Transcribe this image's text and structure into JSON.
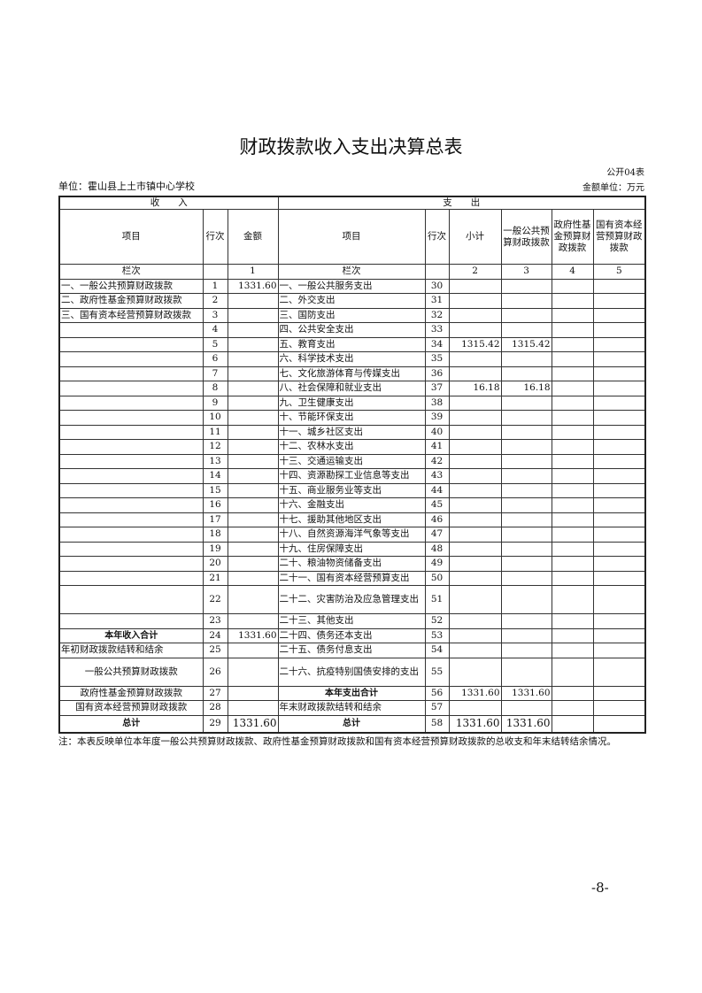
{
  "title": "财政拨款收入支出决算总表",
  "form_no": "公开04表",
  "unit": "单位：霍山县上土市镇中心学校",
  "money_unit": "金额单位：万元",
  "header": {
    "income": "收　　入",
    "expense": "支　　出",
    "item": "项目",
    "row_no": "行次",
    "amount": "金额",
    "subtotal": "小计",
    "general": "一般公共预算财政拨款",
    "gov_fund": "政府性基金预算财政拨款",
    "state_capital": "国有资本经营预算财政拨款",
    "col_label": "栏次",
    "col1": "1",
    "col2": "2",
    "col3": "3",
    "col4": "4",
    "col5": "5"
  },
  "rows": [
    {
      "ii": "一、一般公共预算财政拨款",
      "in": "1",
      "ia": "1331.60",
      "ei": "一、一般公共服务支出",
      "en": "30",
      "c2": "",
      "c3": ""
    },
    {
      "ii": "二、政府性基金预算财政拨款",
      "in": "2",
      "ia": "",
      "ei": "二、外交支出",
      "en": "31",
      "c2": "",
      "c3": ""
    },
    {
      "ii": "三、国有资本经营预算财政拨款",
      "in": "3",
      "ia": "",
      "ei": "三、国防支出",
      "en": "32",
      "c2": "",
      "c3": ""
    },
    {
      "ii": "",
      "in": "4",
      "ia": "",
      "ei": "四、公共安全支出",
      "en": "33",
      "c2": "",
      "c3": ""
    },
    {
      "ii": "",
      "in": "5",
      "ia": "",
      "ei": "五、教育支出",
      "en": "34",
      "c2": "1315.42",
      "c3": "1315.42"
    },
    {
      "ii": "",
      "in": "6",
      "ia": "",
      "ei": "六、科学技术支出",
      "en": "35",
      "c2": "",
      "c3": ""
    },
    {
      "ii": "",
      "in": "7",
      "ia": "",
      "ei": "七、文化旅游体育与传媒支出",
      "en": "36",
      "c2": "",
      "c3": ""
    },
    {
      "ii": "",
      "in": "8",
      "ia": "",
      "ei": "八、社会保障和就业支出",
      "en": "37",
      "c2": "16.18",
      "c3": "16.18"
    },
    {
      "ii": "",
      "in": "9",
      "ia": "",
      "ei": "九、卫生健康支出",
      "en": "38",
      "c2": "",
      "c3": ""
    },
    {
      "ii": "",
      "in": "10",
      "ia": "",
      "ei": "十、节能环保支出",
      "en": "39",
      "c2": "",
      "c3": ""
    },
    {
      "ii": "",
      "in": "11",
      "ia": "",
      "ei": "十一、城乡社区支出",
      "en": "40",
      "c2": "",
      "c3": ""
    },
    {
      "ii": "",
      "in": "12",
      "ia": "",
      "ei": "十二、农林水支出",
      "en": "41",
      "c2": "",
      "c3": ""
    },
    {
      "ii": "",
      "in": "13",
      "ia": "",
      "ei": "十三、交通运输支出",
      "en": "42",
      "c2": "",
      "c3": ""
    },
    {
      "ii": "",
      "in": "14",
      "ia": "",
      "ei": "十四、资源勘探工业信息等支出",
      "en": "43",
      "c2": "",
      "c3": ""
    },
    {
      "ii": "",
      "in": "15",
      "ia": "",
      "ei": "十五、商业服务业等支出",
      "en": "44",
      "c2": "",
      "c3": ""
    },
    {
      "ii": "",
      "in": "16",
      "ia": "",
      "ei": "十六、金融支出",
      "en": "45",
      "c2": "",
      "c3": ""
    },
    {
      "ii": "",
      "in": "17",
      "ia": "",
      "ei": "十七、援助其他地区支出",
      "en": "46",
      "c2": "",
      "c3": ""
    },
    {
      "ii": "",
      "in": "18",
      "ia": "",
      "ei": "十八、自然资源海洋气象等支出",
      "en": "47",
      "c2": "",
      "c3": ""
    },
    {
      "ii": "",
      "in": "19",
      "ia": "",
      "ei": "十九、住房保障支出",
      "en": "48",
      "c2": "",
      "c3": ""
    },
    {
      "ii": "",
      "in": "20",
      "ia": "",
      "ei": "二十、粮油物资储备支出",
      "en": "49",
      "c2": "",
      "c3": ""
    },
    {
      "ii": "",
      "in": "21",
      "ia": "",
      "ei": "二十一、国有资本经营预算支出",
      "en": "50",
      "c2": "",
      "c3": ""
    },
    {
      "ii": "",
      "in": "22",
      "ia": "",
      "ei": "二十二、灾害防治及应急管理支出",
      "en": "51",
      "c2": "",
      "c3": "",
      "tall": true
    },
    {
      "ii": "",
      "in": "23",
      "ia": "",
      "ei": "二十三、其他支出",
      "en": "52",
      "c2": "",
      "c3": ""
    },
    {
      "ii": "本年收入合计",
      "in": "24",
      "ia": "1331.60",
      "ei": "二十四、债务还本支出",
      "en": "53",
      "c2": "",
      "c3": "",
      "ib": true
    },
    {
      "ii": "年初财政拨款结转和结余",
      "in": "25",
      "ia": "",
      "ei": "二十五、债务付息支出",
      "en": "54",
      "c2": "",
      "c3": ""
    },
    {
      "ii": "一般公共预算财政拨款",
      "in": "26",
      "ia": "",
      "ei": "二十六、抗疫特别国债安排的支出",
      "en": "55",
      "c2": "",
      "c3": "",
      "tall": true,
      "ic": true
    },
    {
      "ii": "政府性基金预算财政拨款",
      "in": "27",
      "ia": "",
      "ei": "本年支出合计",
      "en": "56",
      "c2": "1331.60",
      "c3": "1331.60",
      "ic": true,
      "eb": true
    },
    {
      "ii": "国有资本经营预算财政拨款",
      "in": "28",
      "ia": "",
      "ei": "年末财政拨款结转和结余",
      "en": "57",
      "c2": "",
      "c3": "",
      "ic": true
    },
    {
      "ii": "总计",
      "in": "29",
      "ia": "1331.60",
      "ei": "总计",
      "en": "58",
      "c2": "1331.60",
      "c3": "1331.60",
      "ib": true,
      "eb": true,
      "total": true
    }
  ],
  "note": "注：本表反映单位本年度一般公共预算财政拨款、政府性基金预算财政拨款和国有资本经营预算财政拨款的总收支和年末结转结余情况。",
  "page_number": "-8-"
}
